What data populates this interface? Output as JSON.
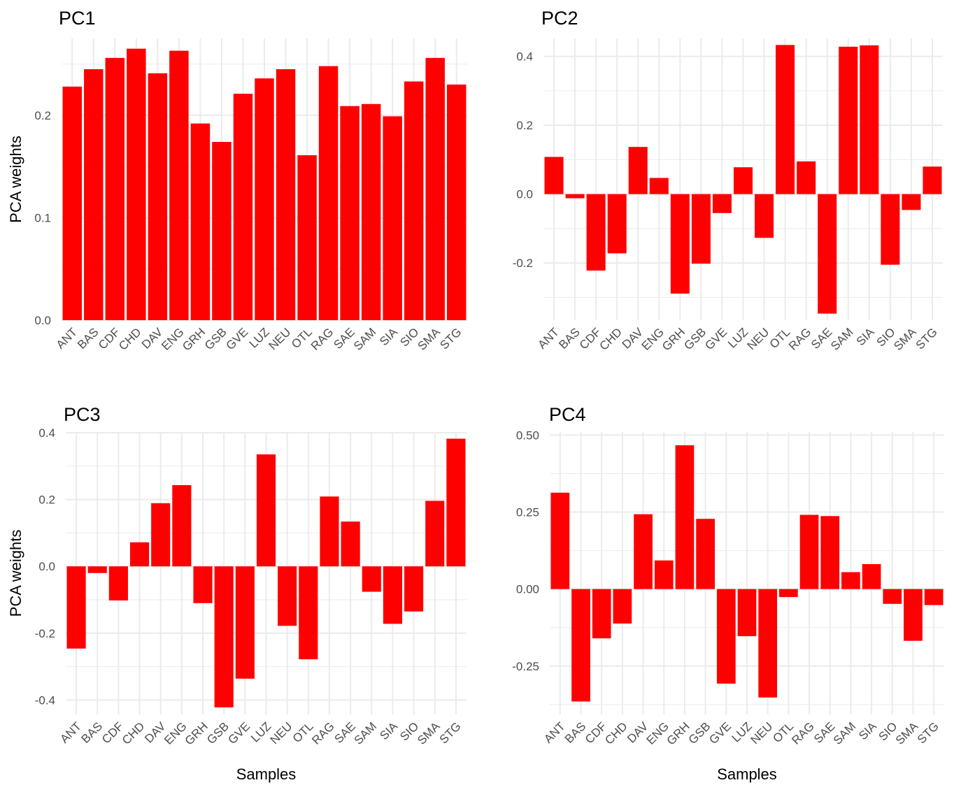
{
  "chart_data": [
    {
      "type": "bar",
      "title": "PC1",
      "xlabel": "",
      "ylabel": "PCA weights",
      "categories": [
        "ANT",
        "BAS",
        "CDF",
        "CHD",
        "DAV",
        "ENG",
        "GRH",
        "GSB",
        "GVE",
        "LUZ",
        "NEU",
        "OTL",
        "RAG",
        "SAE",
        "SAM",
        "SIA",
        "SIO",
        "SMA",
        "STG"
      ],
      "values": [
        0.228,
        0.245,
        0.256,
        0.265,
        0.241,
        0.263,
        0.192,
        0.174,
        0.221,
        0.236,
        0.245,
        0.161,
        0.248,
        0.209,
        0.211,
        0.199,
        0.233,
        0.256,
        0.23
      ],
      "ylim": [
        0,
        0.275
      ],
      "yticks": [
        0,
        0.1,
        0.2
      ],
      "ytick_labels": [
        "0.0",
        "0.1",
        "0.2"
      ],
      "bar_color": "#ff0000",
      "grid": true
    },
    {
      "type": "bar",
      "title": "PC2",
      "xlabel": "",
      "ylabel": "",
      "categories": [
        "ANT",
        "BAS",
        "CDF",
        "CHD",
        "DAV",
        "ENG",
        "GRH",
        "GSB",
        "GVE",
        "LUZ",
        "NEU",
        "OTL",
        "RAG",
        "SAE",
        "SAM",
        "SIA",
        "SIO",
        "SMA",
        "STG"
      ],
      "values": [
        0.108,
        -0.012,
        -0.222,
        -0.172,
        0.137,
        0.047,
        -0.289,
        -0.202,
        -0.055,
        0.078,
        -0.127,
        0.433,
        0.095,
        -0.347,
        0.428,
        0.432,
        -0.205,
        -0.046,
        0.08
      ],
      "ylim": [
        -0.366,
        0.452
      ],
      "yticks": [
        -0.2,
        0,
        0.2,
        0.4
      ],
      "ytick_labels": [
        "-0.2",
        "0.0",
        "0.2",
        "0.4"
      ],
      "bar_color": "#ff0000",
      "grid": true
    },
    {
      "type": "bar",
      "title": "PC3",
      "xlabel": "Samples",
      "ylabel": "PCA weights",
      "categories": [
        "ANT",
        "BAS",
        "CDF",
        "CHD",
        "DAV",
        "ENG",
        "GRH",
        "GSB",
        "GVE",
        "LUZ",
        "NEU",
        "OTL",
        "RAG",
        "SAE",
        "SAM",
        "SIA",
        "SIO",
        "SMA",
        "STG"
      ],
      "values": [
        -0.246,
        -0.02,
        -0.102,
        0.072,
        0.189,
        0.243,
        -0.11,
        -0.422,
        -0.336,
        0.335,
        -0.178,
        -0.278,
        0.209,
        0.134,
        -0.076,
        -0.172,
        -0.135,
        0.196,
        0.382
      ],
      "ylim": [
        -0.443,
        0.402
      ],
      "yticks": [
        -0.4,
        -0.2,
        0,
        0.2,
        0.4
      ],
      "ytick_labels": [
        "-0.4",
        "-0.2",
        "0.0",
        "0.2",
        "0.4"
      ],
      "bar_color": "#ff0000",
      "grid": true
    },
    {
      "type": "bar",
      "title": "PC4",
      "xlabel": "Samples",
      "ylabel": "",
      "categories": [
        "ANT",
        "BAS",
        "CDF",
        "CHD",
        "DAV",
        "ENG",
        "GRH",
        "GSB",
        "GVE",
        "LUZ",
        "NEU",
        "OTL",
        "RAG",
        "SAE",
        "SAM",
        "SIA",
        "SIO",
        "SMA",
        "STG"
      ],
      "values": [
        0.313,
        -0.365,
        -0.16,
        -0.112,
        0.243,
        0.093,
        0.467,
        0.228,
        -0.307,
        -0.153,
        -0.352,
        -0.026,
        0.241,
        0.237,
        0.055,
        0.081,
        -0.048,
        -0.168,
        -0.052
      ],
      "ylim": [
        -0.407,
        0.51
      ],
      "yticks": [
        -0.25,
        0,
        0.25,
        0.5
      ],
      "ytick_labels": [
        "-0.25",
        "0.00",
        "0.25",
        "0.50"
      ],
      "bar_color": "#ff0000",
      "grid": true
    }
  ]
}
